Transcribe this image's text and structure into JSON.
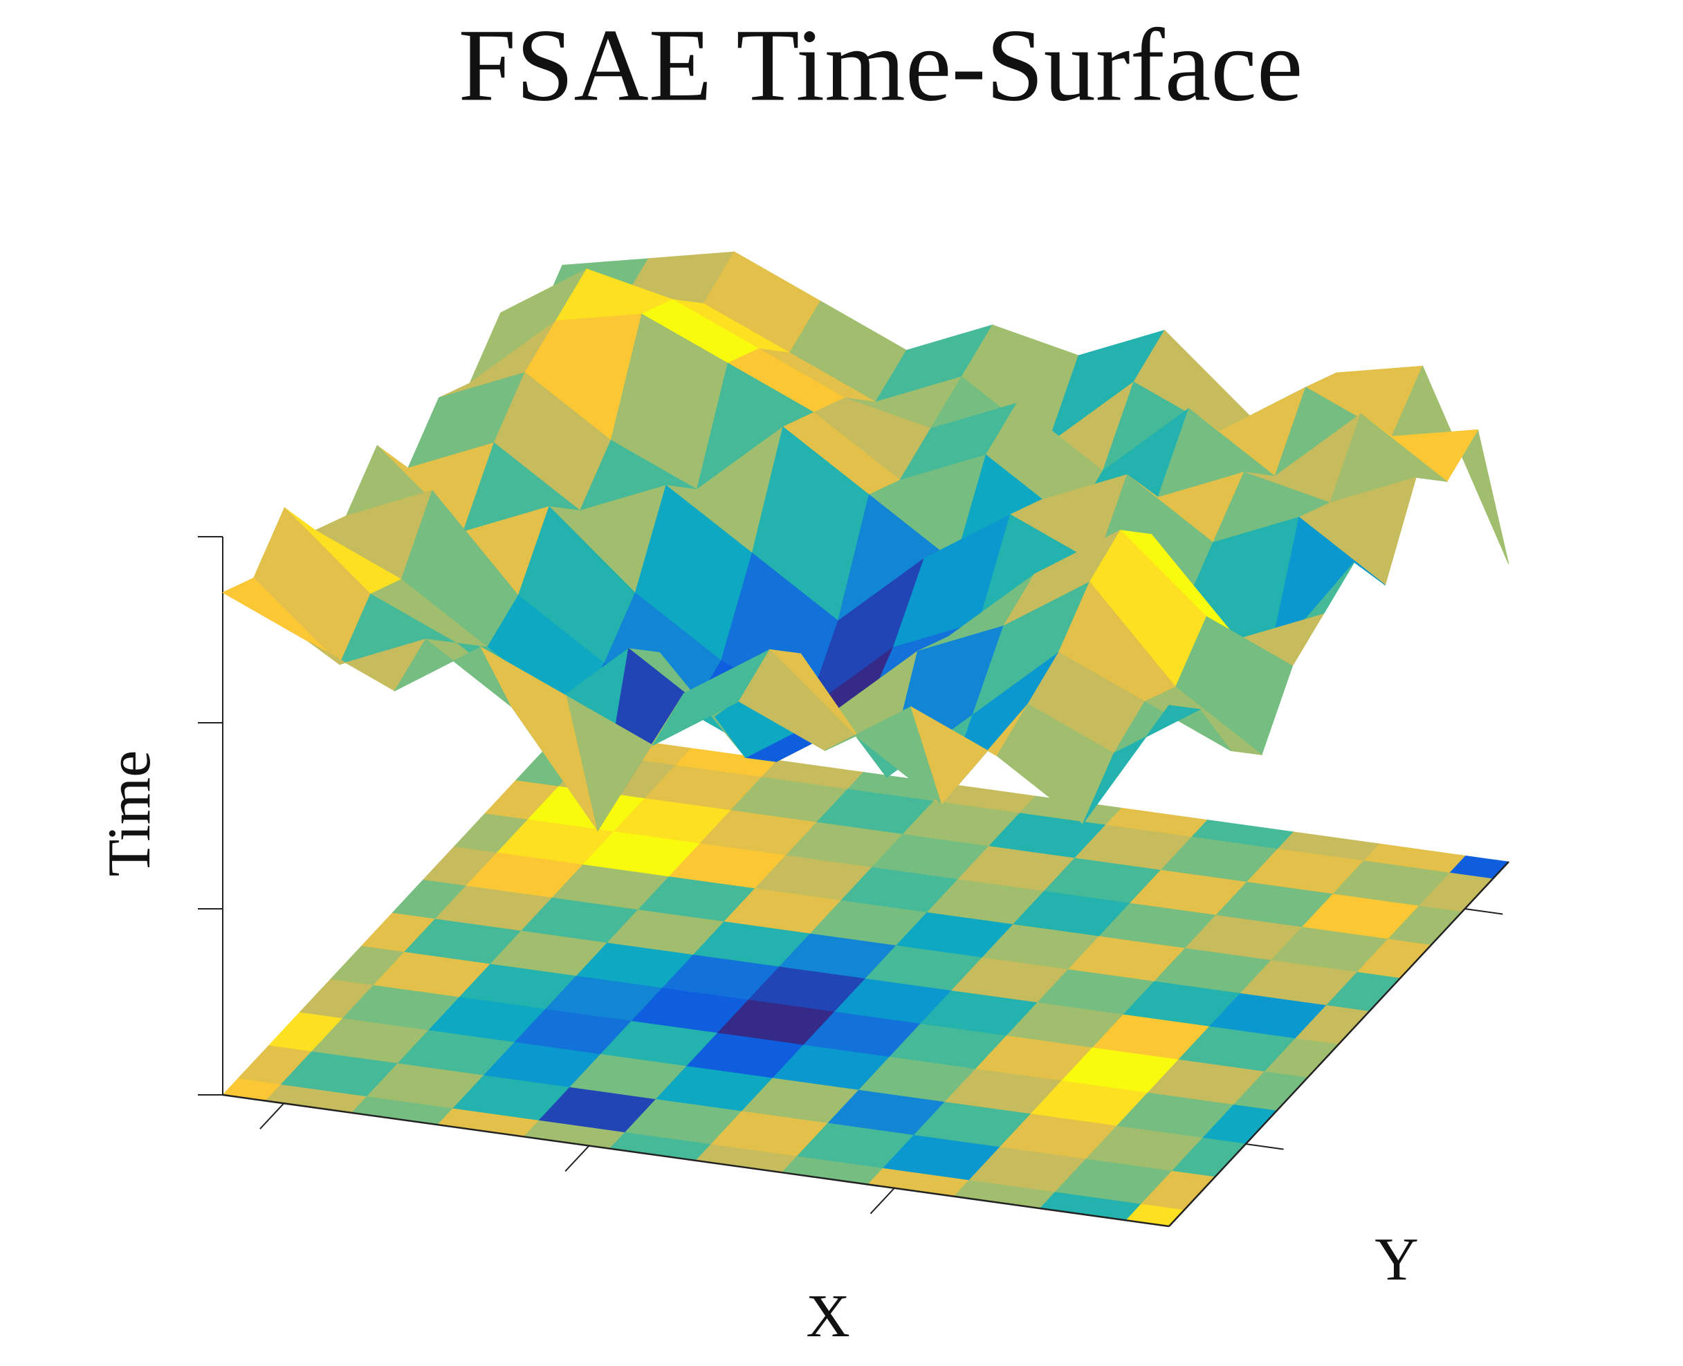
{
  "chart_data": {
    "type": "surface",
    "title": "FSAE Time-Surface",
    "xlabel": "X",
    "ylabel": "Y",
    "zlabel": "Time",
    "xlim": [
      0,
      31
    ],
    "xticks": [
      2,
      12,
      22
    ],
    "ylim": [
      0,
      31
    ],
    "yticks": [
      7,
      27
    ],
    "zlim": [
      0,
      3
    ],
    "zticks": [
      0,
      1,
      2,
      3
    ],
    "colormap": [
      "#352a87",
      "#0f5cdd",
      "#1481d6",
      "#06a4ca",
      "#2eb7a4",
      "#87bf77",
      "#d1bb59",
      "#fec832",
      "#f9fb0e"
    ],
    "z": [
      [
        2.7,
        2.5,
        2.3,
        2.6,
        2.4,
        2.2,
        2.5,
        2.3,
        2.6,
        2.4,
        2.1,
        2.8
      ],
      [
        2.6,
        2.2,
        2.4,
        2.1,
        1.5,
        2.3,
        2.6,
        2.2,
        1.9,
        2.5,
        2.3,
        2.6
      ],
      [
        2.8,
        2.4,
        2.2,
        1.9,
        2.3,
        2.0,
        2.4,
        1.8,
        2.2,
        2.6,
        2.4,
        2.2
      ],
      [
        2.5,
        2.3,
        2.0,
        1.7,
        2.1,
        1.6,
        1.9,
        2.3,
        2.5,
        2.8,
        2.3,
        2.0
      ],
      [
        2.4,
        2.6,
        2.1,
        1.8,
        1.6,
        1.4,
        1.7,
        2.2,
        2.6,
        2.9,
        2.5,
        2.3
      ],
      [
        2.6,
        2.2,
        2.4,
        2.0,
        1.7,
        1.5,
        1.9,
        2.1,
        2.4,
        2.7,
        2.2,
        2.4
      ],
      [
        2.3,
        2.5,
        2.2,
        2.4,
        2.1,
        1.8,
        2.2,
        2.5,
        2.3,
        2.1,
        1.9,
        2.5
      ],
      [
        2.5,
        2.7,
        2.4,
        2.2,
        2.6,
        2.3,
        2.0,
        2.4,
        2.6,
        2.3,
        2.5,
        2.2
      ],
      [
        2.4,
        2.8,
        2.9,
        2.7,
        2.5,
        2.2,
        2.4,
        2.1,
        2.3,
        2.5,
        2.4,
        2.6
      ],
      [
        2.6,
        2.9,
        2.8,
        2.6,
        2.4,
        2.3,
        2.5,
        2.2,
        2.6,
        2.3,
        2.7,
        2.4
      ],
      [
        2.3,
        2.5,
        2.6,
        2.4,
        2.2,
        2.4,
        2.1,
        2.5,
        2.3,
        2.6,
        2.4,
        2.5
      ],
      [
        2.5,
        2.6,
        2.7,
        2.5,
        2.3,
        2.5,
        2.4,
        2.6,
        2.2,
        2.5,
        2.6,
        1.6
      ]
    ]
  }
}
